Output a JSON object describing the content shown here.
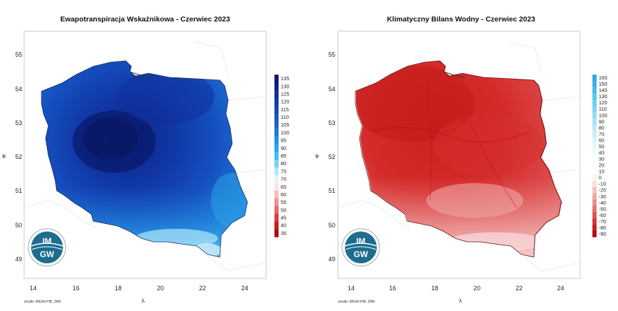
{
  "maps": [
    {
      "title": "Ewapotranspiracja Wskaźnikowa - Czerwiec 2023",
      "x_ticks": [
        "14",
        "16",
        "18",
        "20",
        "22",
        "24"
      ],
      "y_ticks": [
        "55",
        "54",
        "53",
        "52",
        "51",
        "50",
        "49"
      ],
      "x_axis_label": "λ",
      "y_axis_label": "φ",
      "legend_labels": [
        "135",
        "130",
        "125",
        "120",
        "115",
        "110",
        "105",
        "100",
        "95",
        "90",
        "85",
        "80",
        "75",
        "70",
        "65",
        "60",
        "55",
        "50",
        "45",
        "40",
        "35"
      ],
      "legend_colors": [
        "#0a1a6e",
        "#0d2485",
        "#10309a",
        "#123aa9",
        "#1446b8",
        "#1655c4",
        "#1a66cf",
        "#1c7cd9",
        "#1f93e2",
        "#25a9ea",
        "#3fc0f0",
        "#78d3f4",
        "#b4e6f8",
        "#e8f5fb",
        "#fbe3e3",
        "#f5bcbc",
        "#ee9292",
        "#e66767",
        "#dc3d3d",
        "#cc1b1b",
        "#b30a0a"
      ],
      "source": "źródło: IMGW-PIB, ZMK",
      "logo_top": "IM",
      "logo_bottom": "GW"
    },
    {
      "title": "Klimatyczny Bilans Wodny - Czerwiec 2023",
      "x_ticks": [
        "14",
        "16",
        "18",
        "20",
        "22",
        "24"
      ],
      "y_ticks": [
        "55",
        "54",
        "53",
        "52",
        "51",
        "50",
        "49"
      ],
      "x_axis_label": "λ",
      "y_axis_label": "φ",
      "legend_labels": [
        "160",
        "150",
        "140",
        "130",
        "120",
        "110",
        "100",
        "90",
        "80",
        "70",
        "60",
        "50",
        "40",
        "30",
        "20",
        "10",
        "0",
        "-10",
        "-20",
        "-30",
        "-40",
        "-50",
        "-60",
        "-70",
        "-80",
        "-90"
      ],
      "legend_colors": [
        "#28a8e6",
        "#38b2ea",
        "#4abced",
        "#5cc5f0",
        "#6fcdf2",
        "#82d4f4",
        "#95dbf6",
        "#a7e2f8",
        "#b8e8f9",
        "#c9eefa",
        "#d9f3fb",
        "#e7f7fc",
        "#f2fafd",
        "#fafdfe",
        "#ffffff",
        "#ffffff",
        "#fdf1f1",
        "#f9dcdc",
        "#f4c3c3",
        "#efa9a9",
        "#e98e8e",
        "#e27272",
        "#da5555",
        "#d03838",
        "#c51f1f",
        "#b90c0c"
      ],
      "source": "źródło: IMGW-PIB, ZMK",
      "logo_top": "IM",
      "logo_bottom": "GW"
    }
  ]
}
